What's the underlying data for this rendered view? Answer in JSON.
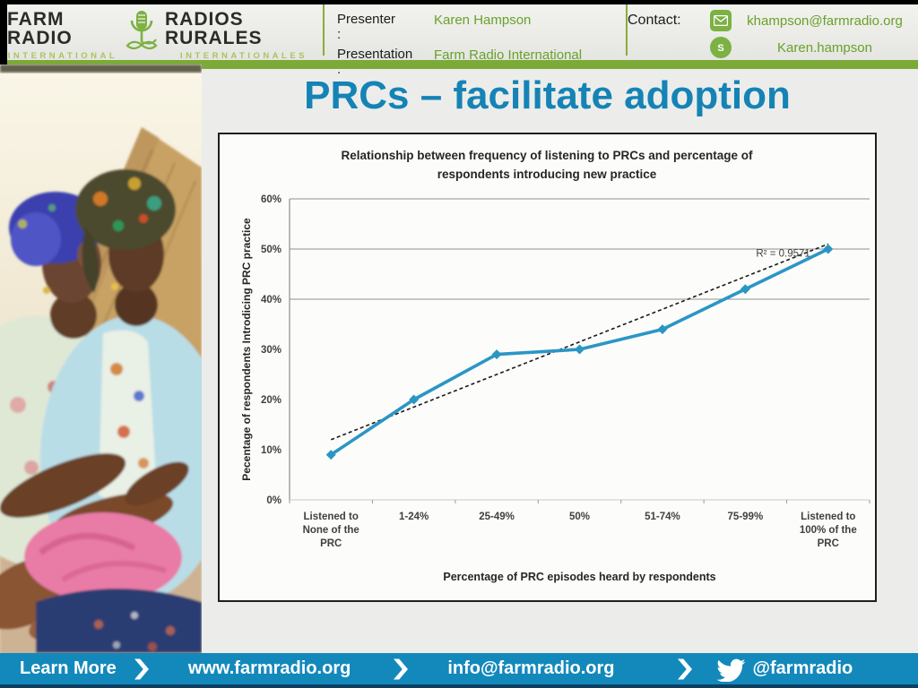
{
  "header": {
    "logo": {
      "wordmark_en": "FARM RADIO",
      "wordmark_fr": "RADIOS RURALES",
      "sub_en": "INTERNATIONAL",
      "sub_fr": "INTERNATIONALES"
    },
    "presenter_label": "Presenter\n:",
    "presenter_name": "Karen Hampson",
    "presentation_label": "Presentation\n:",
    "presentation_name": "Farm Radio International",
    "contact_label": "Contact:",
    "email": "khampson@farmradio.org",
    "skype": "Karen.hampson"
  },
  "slide": {
    "title": "PRCs – facilitate adoption"
  },
  "chart_data": {
    "type": "line",
    "title": "Relationship between frequency of listening to PRCs and percentage of respondents introducing new practice",
    "categories": [
      "Listened to None of the PRC",
      "1-24%",
      "25-49%",
      "50%",
      "51-74%",
      "75-99%",
      "Listened to 100% of the PRC"
    ],
    "series": [
      {
        "name": "Percentage of respondents introducing PRC practice",
        "values": [
          9,
          20,
          29,
          30,
          34,
          42,
          50
        ]
      }
    ],
    "trendline": {
      "start_value": 12,
      "end_value": 51,
      "r2_label": "R² = 0.9571",
      "style": "dashed"
    },
    "xlabel": "Percentage of PRC episodes heard by respondents",
    "ylabel": "Pecentage of respondents Introdicing PRC practice",
    "ylim": [
      0,
      60
    ],
    "ytick_step": 10,
    "ytick_format": "percent",
    "gridlines_at": [
      40,
      50,
      60
    ],
    "legend": "none",
    "line_color": "#2b96c4",
    "trend_color": "#1a1a1a"
  },
  "footer": {
    "learn_more": "Learn More",
    "website": "www.farmradio.org",
    "email": "info@farmradio.org",
    "twitter": "@farmradio"
  },
  "colors": {
    "title_blue": "#1583b5",
    "footer_blue": "#1389bb",
    "brand_green": "#7caa39",
    "text_green": "#67a22a"
  }
}
